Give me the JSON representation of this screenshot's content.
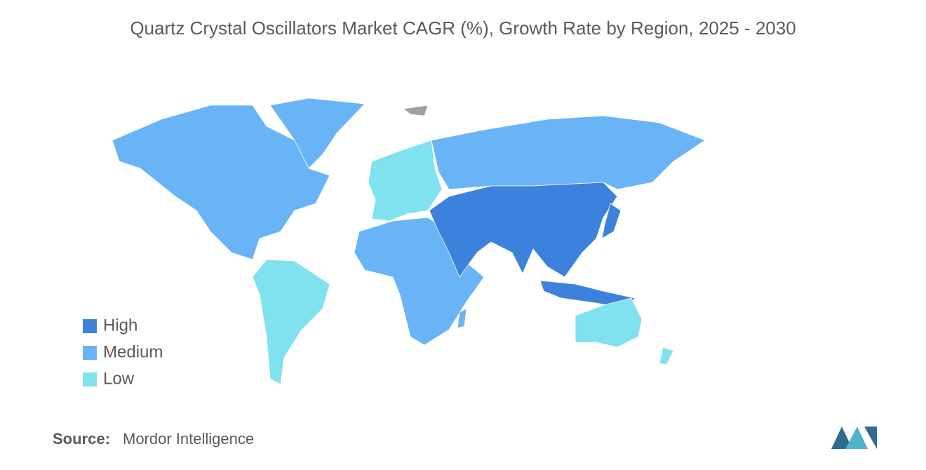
{
  "title": "Quartz Crystal Oscillators Market CAGR (%), Growth Rate by Region, 2025 - 2030",
  "legend": {
    "items": [
      {
        "label": "High",
        "color": "#3c82dc"
      },
      {
        "label": "Medium",
        "color": "#68b4f6"
      },
      {
        "label": "Low",
        "color": "#80e1ef"
      }
    ]
  },
  "source": {
    "label": "Source:",
    "text": "Mordor Intelligence"
  }
}
